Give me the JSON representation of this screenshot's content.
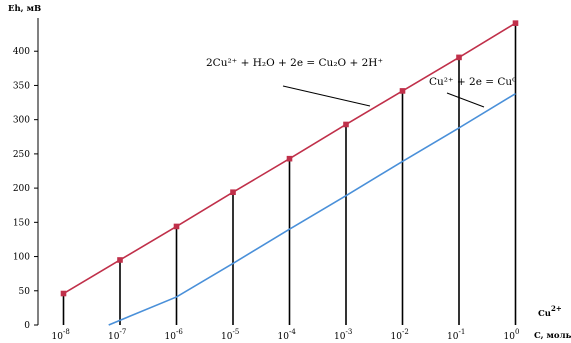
{
  "chart_data": {
    "type": "line",
    "ylabel": "Eh, мВ",
    "xlabel": "C, моль/л",
    "xlabel_species": "Cu",
    "xlabel_species_sup": "2+",
    "ylim": [
      0,
      450
    ],
    "yticks": [
      0,
      50,
      100,
      150,
      200,
      250,
      300,
      350,
      400
    ],
    "categories": [
      {
        "base": "10",
        "exp": "-8"
      },
      {
        "base": "10",
        "exp": "-7"
      },
      {
        "base": "10",
        "exp": "-6"
      },
      {
        "base": "10",
        "exp": "-5"
      },
      {
        "base": "10",
        "exp": "-4"
      },
      {
        "base": "10",
        "exp": "-3"
      },
      {
        "base": "10",
        "exp": "-2"
      },
      {
        "base": "10",
        "exp": "-1"
      },
      {
        "base": "10",
        "exp": "0"
      }
    ],
    "series": [
      {
        "equation": "2Cu²⁺ + H₂O + 2e = Cu₂O + 2H⁺",
        "color": "#c0304a",
        "marker": "square",
        "x": [
          -8,
          -7,
          -6,
          -5,
          -4,
          -3,
          -2,
          -1,
          0
        ],
        "y": [
          46,
          95,
          144,
          194,
          243,
          293,
          342,
          391,
          441
        ]
      },
      {
        "equation": "Cu²⁺ + 2e = Cu⁰",
        "color": "#4a90d9",
        "marker": "none",
        "x": [
          -7.2,
          -6,
          -5,
          -4,
          -3,
          -2,
          -1,
          0
        ],
        "y": [
          0,
          41,
          90,
          140,
          189,
          239,
          288,
          338
        ]
      }
    ],
    "grid": false
  }
}
